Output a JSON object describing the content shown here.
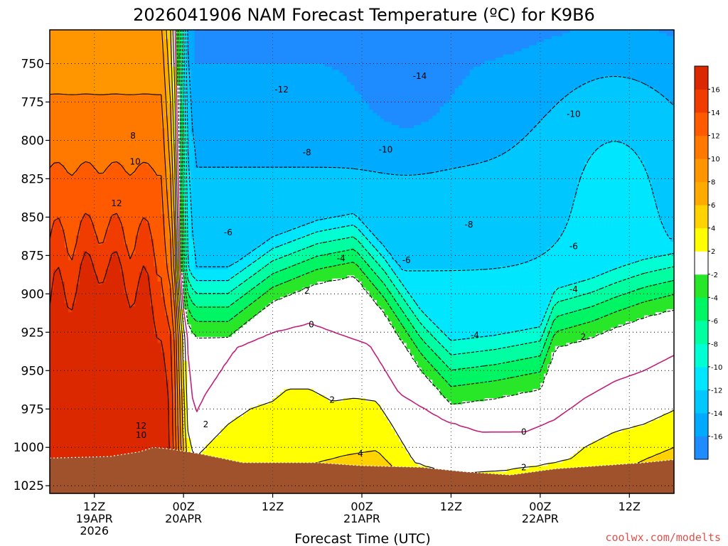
{
  "chart_data": {
    "type": "heatmap",
    "title": "2026041906 NAM Forecast Temperature (ºC) for K9B6",
    "xlabel": "Forecast Time (UTC)",
    "ylabel": "",
    "x_unit": "hours since 2026-04-19 06Z",
    "xlim": [
      0,
      84
    ],
    "y_unit": "pressure (hPa)",
    "ylim": [
      728,
      1030
    ],
    "y_ticks": [
      750,
      775,
      800,
      825,
      850,
      875,
      900,
      925,
      950,
      975,
      1000,
      1025
    ],
    "x_ticks": [
      {
        "hour": 6,
        "lines": [
          "12Z",
          "19APR",
          "2026"
        ]
      },
      {
        "hour": 18,
        "lines": [
          "00Z",
          "20APR"
        ]
      },
      {
        "hour": 30,
        "lines": [
          "12Z"
        ]
      },
      {
        "hour": 42,
        "lines": [
          "00Z",
          "21APR"
        ]
      },
      {
        "hour": 54,
        "lines": [
          "12Z"
        ]
      },
      {
        "hour": 66,
        "lines": [
          "00Z",
          "22APR"
        ]
      },
      {
        "hour": 78,
        "lines": [
          "12Z"
        ]
      }
    ],
    "color_levels": [
      -18,
      -16,
      -14,
      -12,
      -10,
      -8,
      -6,
      -4,
      -2,
      2,
      4,
      6,
      8,
      10,
      12,
      14,
      16,
      18
    ],
    "colorbar_labels": [
      -16,
      -14,
      -12,
      -10,
      -8,
      -6,
      -4,
      -2,
      2,
      4,
      6,
      8,
      10,
      12,
      14,
      16
    ],
    "colors": [
      "#1e8cff",
      "#00aaff",
      "#00c8ff",
      "#00e6ff",
      "#00ffd2",
      "#00ffa0",
      "#00f564",
      "#28e628",
      "#ffffff",
      "#ffff00",
      "#ffd200",
      "#ffaa00",
      "#ff9600",
      "#ff7800",
      "#ff5a00",
      "#f03c00",
      "#dc2800"
    ],
    "terrain_color": "#a0522d",
    "contour_labels": [
      {
        "text": "8",
        "hour": 11.2,
        "p": 797
      },
      {
        "text": "10",
        "hour": 11.5,
        "p": 814
      },
      {
        "text": "12",
        "hour": 9.0,
        "p": 841
      },
      {
        "text": "12",
        "hour": 12.3,
        "p": 986
      },
      {
        "text": "10",
        "hour": 12.3,
        "p": 992
      },
      {
        "text": "2",
        "hour": 21.0,
        "p": 985
      },
      {
        "text": "-6",
        "hour": 24.0,
        "p": 860
      },
      {
        "text": "-12",
        "hour": 31.2,
        "p": 767
      },
      {
        "text": "-8",
        "hour": 34.6,
        "p": 808
      },
      {
        "text": "2",
        "hour": 34.6,
        "p": 898
      },
      {
        "text": "-4",
        "hour": 39.2,
        "p": 877
      },
      {
        "text": "0",
        "hour": 35.2,
        "p": 920
      },
      {
        "text": "2",
        "hour": 38.0,
        "p": 969
      },
      {
        "text": "4",
        "hour": 41.8,
        "p": 1004
      },
      {
        "text": "-10",
        "hour": 45.2,
        "p": 806
      },
      {
        "text": "-14",
        "hour": 49.8,
        "p": 758
      },
      {
        "text": "-6",
        "hour": 48.0,
        "p": 878
      },
      {
        "text": "-8",
        "hour": 56.4,
        "p": 855
      },
      {
        "text": "-4",
        "hour": 57.2,
        "p": 927
      },
      {
        "text": "0",
        "hour": 63.8,
        "p": 990
      },
      {
        "text": "2",
        "hour": 63.8,
        "p": 1013
      },
      {
        "text": "-10",
        "hour": 70.5,
        "p": 783
      },
      {
        "text": "-6",
        "hour": 70.5,
        "p": 869
      },
      {
        "text": "-4",
        "hour": 70.5,
        "p": 897
      },
      {
        "text": "2",
        "hour": 71.8,
        "p": 928
      }
    ]
  },
  "credit": "coolwx.com/modelts"
}
